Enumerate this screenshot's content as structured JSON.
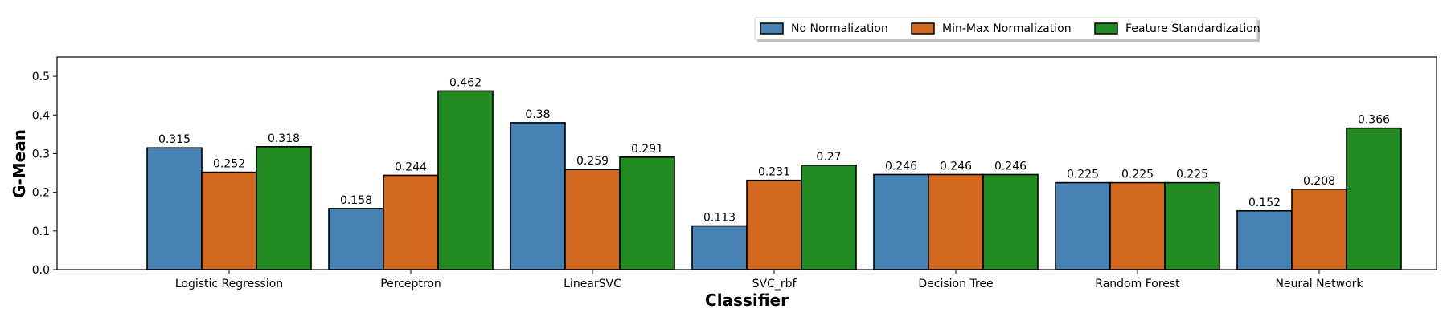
{
  "chart_data": {
    "type": "bar",
    "title": "",
    "xlabel": "Classifier",
    "ylabel": "G-Mean",
    "ylim": [
      0,
      0.55
    ],
    "yticks": [
      0.0,
      0.1,
      0.2,
      0.3,
      0.4,
      0.5
    ],
    "ytick_labels": [
      "0.0",
      "0.1",
      "0.2",
      "0.3",
      "0.4",
      "0.5"
    ],
    "grid": false,
    "legend_position": "top-right",
    "categories": [
      "Logistic Regression",
      "Perceptron",
      "LinearSVC",
      "SVC_rbf",
      "Decision Tree",
      "Random Forest",
      "Neural Network"
    ],
    "series": [
      {
        "name": "No Normalization",
        "color": "#4682b4",
        "values": [
          0.315,
          0.158,
          0.38,
          0.113,
          0.246,
          0.225,
          0.152
        ],
        "value_labels": [
          "0.315",
          "0.158",
          "0.38",
          "0.113",
          "0.246",
          "0.225",
          "0.152"
        ]
      },
      {
        "name": "Min-Max Normalization",
        "color": "#d2691e",
        "values": [
          0.252,
          0.244,
          0.259,
          0.231,
          0.246,
          0.225,
          0.208
        ],
        "value_labels": [
          "0.252",
          "0.244",
          "0.259",
          "0.231",
          "0.246",
          "0.225",
          "0.208"
        ]
      },
      {
        "name": "Feature Standardization",
        "color": "#228b22",
        "values": [
          0.318,
          0.462,
          0.291,
          0.27,
          0.246,
          0.225,
          0.366
        ],
        "value_labels": [
          "0.318",
          "0.462",
          "0.291",
          "0.27",
          "0.246",
          "0.225",
          "0.366"
        ]
      }
    ]
  }
}
